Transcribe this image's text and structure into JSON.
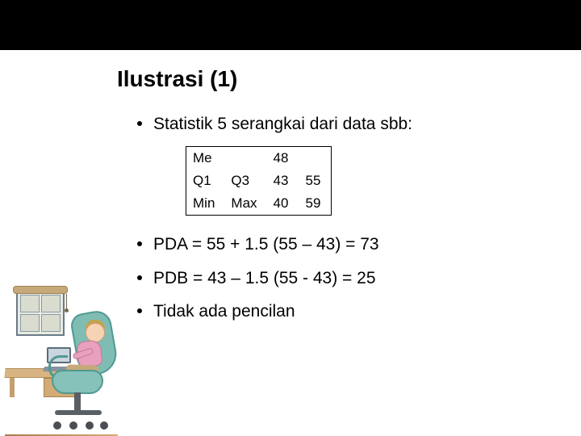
{
  "slide": {
    "title": "Ilustrasi (1)",
    "bullet1": "Statistik 5 serangkai dari data sbb:",
    "table": {
      "r1c1": "Me",
      "r1c2": "",
      "r1c3": "48",
      "r1c4": "",
      "r2c1": "Q1",
      "r2c2": "Q3",
      "r2c3": "43",
      "r2c4": "55",
      "r3c1": "Min",
      "r3c2": "Max",
      "r3c3": "40",
      "r3c4": "59"
    },
    "bullet2": "PDA = 55 + 1.5 (55 – 43) = 73",
    "bullet3": "PDB = 43 – 1.5 (55 - 43) = 25",
    "bullet4": "Tidak ada pencilan"
  },
  "style": {
    "bg_color": "#ffffff",
    "topbar_color": "#000000",
    "title_fontsize_pt": 21,
    "title_weight": "bold",
    "body_fontsize_pt": 16,
    "table_fontsize_pt": 13,
    "text_color": "#000000",
    "table_border_color": "#000000"
  }
}
